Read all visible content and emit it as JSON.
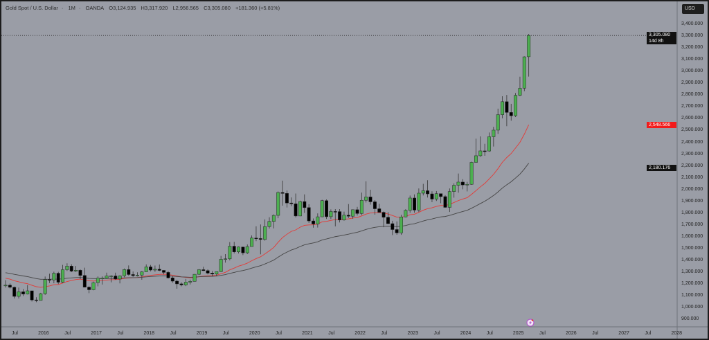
{
  "header": {
    "symbol": "Gold Spot / U.S. Dollar",
    "interval": "1M",
    "source": "OANDA",
    "open": "O3,124.935",
    "high": "H3,317.920",
    "low": "L2,956.565",
    "close": "C3,305.080",
    "change": "+181.360 (+5.81%)"
  },
  "currency_button": "USD",
  "price_axis": {
    "labels": [
      "3,400.000",
      "3,300.000",
      "3,200.000",
      "3,100.000",
      "3,000.000",
      "2,900.000",
      "2,800.000",
      "2,700.000",
      "2,600.000",
      "2,500.000",
      "2,400.000",
      "2,300.000",
      "2,200.000",
      "2,100.000",
      "2,000.000",
      "1,900.000",
      "1,800.000",
      "1,700.000",
      "1,600.000",
      "1,500.000",
      "1,400.000",
      "1,300.000",
      "1,200.000",
      "1,100.000",
      "1,000.000",
      "900.000"
    ],
    "scale": "linear"
  },
  "time_axis": {
    "labels": [
      "Jul",
      "2016",
      "Jul",
      "2017",
      "Jul",
      "2018",
      "Jul",
      "2019",
      "Jul",
      "2020",
      "Jul",
      "2021",
      "Jul",
      "2022",
      "Jul",
      "2023",
      "Jul",
      "2024",
      "Jul",
      "2025",
      "Jul",
      "2026",
      "Jul",
      "2027",
      "Jul",
      "2028"
    ]
  },
  "tags": {
    "last_price": "3,305.080",
    "countdown": "14d 8h",
    "ma_red": "2,548.566",
    "ma_black": "2,180.176"
  },
  "colors": {
    "background": "#9a9da6",
    "bull": "#4caf50",
    "bear": "#000000",
    "ma_red": "#e53935",
    "ma_black": "#444444"
  },
  "chart_data": {
    "type": "candlestick",
    "start": "2015-05",
    "interval": "1M",
    "ylim": [
      850,
      3450
    ],
    "ohlc": [
      [
        1184,
        1232,
        1170,
        1190
      ],
      [
        1190,
        1205,
        1162,
        1172
      ],
      [
        1172,
        1178,
        1077,
        1095
      ],
      [
        1095,
        1170,
        1077,
        1134
      ],
      [
        1134,
        1157,
        1098,
        1115
      ],
      [
        1115,
        1191,
        1111,
        1142
      ],
      [
        1142,
        1143,
        1052,
        1065
      ],
      [
        1065,
        1088,
        1046,
        1061
      ],
      [
        1061,
        1125,
        1062,
        1118
      ],
      [
        1118,
        1263,
        1108,
        1238
      ],
      [
        1238,
        1287,
        1208,
        1234
      ],
      [
        1234,
        1304,
        1206,
        1291
      ],
      [
        1291,
        1303,
        1199,
        1215
      ],
      [
        1215,
        1362,
        1207,
        1321
      ],
      [
        1321,
        1375,
        1310,
        1351
      ],
      [
        1351,
        1367,
        1300,
        1309
      ],
      [
        1309,
        1352,
        1302,
        1316
      ],
      [
        1316,
        1324,
        1241,
        1272
      ],
      [
        1272,
        1338,
        1171,
        1173
      ],
      [
        1173,
        1180,
        1122,
        1151
      ],
      [
        1151,
        1220,
        1146,
        1211
      ],
      [
        1211,
        1264,
        1180,
        1249
      ],
      [
        1249,
        1264,
        1195,
        1249
      ],
      [
        1249,
        1296,
        1244,
        1268
      ],
      [
        1268,
        1274,
        1214,
        1268
      ],
      [
        1268,
        1296,
        1236,
        1242
      ],
      [
        1242,
        1274,
        1205,
        1269
      ],
      [
        1269,
        1331,
        1257,
        1322
      ],
      [
        1322,
        1357,
        1271,
        1280
      ],
      [
        1280,
        1306,
        1260,
        1271
      ],
      [
        1271,
        1299,
        1264,
        1275
      ],
      [
        1275,
        1309,
        1236,
        1303
      ],
      [
        1303,
        1366,
        1302,
        1345
      ],
      [
        1345,
        1361,
        1307,
        1318
      ],
      [
        1318,
        1356,
        1303,
        1325
      ],
      [
        1325,
        1365,
        1309,
        1315
      ],
      [
        1315,
        1317,
        1281,
        1298
      ],
      [
        1298,
        1309,
        1246,
        1252
      ],
      [
        1252,
        1266,
        1211,
        1224
      ],
      [
        1224,
        1235,
        1160,
        1201
      ],
      [
        1201,
        1214,
        1180,
        1192
      ],
      [
        1192,
        1243,
        1182,
        1215
      ],
      [
        1215,
        1237,
        1196,
        1222
      ],
      [
        1222,
        1284,
        1221,
        1282
      ],
      [
        1282,
        1326,
        1276,
        1321
      ],
      [
        1321,
        1346,
        1310,
        1313
      ],
      [
        1313,
        1324,
        1281,
        1292
      ],
      [
        1292,
        1310,
        1266,
        1284
      ],
      [
        1284,
        1306,
        1266,
        1305
      ],
      [
        1305,
        1438,
        1301,
        1409
      ],
      [
        1409,
        1453,
        1381,
        1413
      ],
      [
        1413,
        1555,
        1400,
        1520
      ],
      [
        1520,
        1557,
        1459,
        1472
      ],
      [
        1472,
        1517,
        1459,
        1513
      ],
      [
        1513,
        1516,
        1445,
        1464
      ],
      [
        1464,
        1535,
        1454,
        1517
      ],
      [
        1517,
        1611,
        1517,
        1589
      ],
      [
        1589,
        1689,
        1563,
        1585
      ],
      [
        1585,
        1704,
        1451,
        1577
      ],
      [
        1577,
        1747,
        1567,
        1686
      ],
      [
        1686,
        1765,
        1670,
        1730
      ],
      [
        1730,
        1789,
        1671,
        1781
      ],
      [
        1781,
        1984,
        1757,
        1975
      ],
      [
        1975,
        2075,
        1863,
        1967
      ],
      [
        1967,
        1992,
        1848,
        1886
      ],
      [
        1886,
        1933,
        1859,
        1879
      ],
      [
        1879,
        1966,
        1764,
        1776
      ],
      [
        1776,
        1906,
        1775,
        1898
      ],
      [
        1898,
        1959,
        1802,
        1847
      ],
      [
        1847,
        1875,
        1717,
        1734
      ],
      [
        1734,
        1755,
        1677,
        1708
      ],
      [
        1708,
        1798,
        1678,
        1769
      ],
      [
        1769,
        1913,
        1766,
        1906
      ],
      [
        1906,
        1916,
        1751,
        1770
      ],
      [
        1770,
        1832,
        1750,
        1814
      ],
      [
        1814,
        1834,
        1688,
        1813
      ],
      [
        1813,
        1834,
        1721,
        1742
      ],
      [
        1742,
        1813,
        1736,
        1783
      ],
      [
        1783,
        1877,
        1759,
        1774
      ],
      [
        1774,
        1831,
        1753,
        1829
      ],
      [
        1829,
        1853,
        1780,
        1797
      ],
      [
        1797,
        1974,
        1783,
        1909
      ],
      [
        1909,
        2070,
        1890,
        1937
      ],
      [
        1937,
        1998,
        1872,
        1896
      ],
      [
        1896,
        1910,
        1787,
        1837
      ],
      [
        1837,
        1879,
        1805,
        1807
      ],
      [
        1807,
        1814,
        1681,
        1765
      ],
      [
        1765,
        1808,
        1709,
        1711
      ],
      [
        1711,
        1735,
        1614,
        1661
      ],
      [
        1661,
        1730,
        1617,
        1633
      ],
      [
        1633,
        1786,
        1616,
        1768
      ],
      [
        1768,
        1833,
        1765,
        1824
      ],
      [
        1824,
        1949,
        1804,
        1928
      ],
      [
        1928,
        1959,
        1804,
        1826
      ],
      [
        1826,
        2009,
        1809,
        1969
      ],
      [
        1969,
        2048,
        1950,
        1990
      ],
      [
        1990,
        2079,
        1932,
        1963
      ],
      [
        1963,
        1985,
        1893,
        1919
      ],
      [
        1919,
        1987,
        1903,
        1965
      ],
      [
        1965,
        1966,
        1884,
        1940
      ],
      [
        1940,
        1953,
        1846,
        1849
      ],
      [
        1849,
        2009,
        1810,
        1983
      ],
      [
        1983,
        2052,
        1931,
        2036
      ],
      [
        2036,
        2135,
        1973,
        2063
      ],
      [
        2063,
        2088,
        2002,
        2039
      ],
      [
        2039,
        2065,
        1984,
        2044
      ],
      [
        2044,
        2236,
        2039,
        2230
      ],
      [
        2230,
        2431,
        2228,
        2286
      ],
      [
        2286,
        2450,
        2277,
        2327
      ],
      [
        2327,
        2387,
        2286,
        2326
      ],
      [
        2326,
        2483,
        2320,
        2447
      ],
      [
        2447,
        2531,
        2364,
        2503
      ],
      [
        2503,
        2685,
        2471,
        2634
      ],
      [
        2634,
        2790,
        2603,
        2744
      ],
      [
        2744,
        2801,
        2536,
        2653
      ],
      [
        2653,
        2726,
        2583,
        2625
      ],
      [
        2625,
        2817,
        2614,
        2798
      ],
      [
        2798,
        2956,
        2790,
        2858
      ],
      [
        2858,
        3128,
        2833,
        3124
      ],
      [
        3124.935,
        3317.92,
        2956.565,
        3305.08
      ]
    ]
  }
}
